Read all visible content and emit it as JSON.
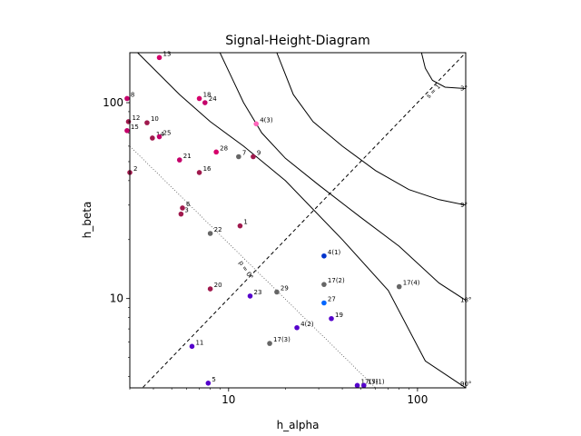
{
  "chart_data": {
    "type": "scatter",
    "title": "Signal-Height-Diagram",
    "xlabel": "h_alpha",
    "ylabel": "h_beta",
    "xscale": "log",
    "yscale": "log",
    "xlim": [
      3,
      180
    ],
    "ylim": [
      3.5,
      180
    ],
    "x_ticks": [
      {
        "v": 10,
        "label": "10"
      },
      {
        "v": 100,
        "label": "100"
      }
    ],
    "y_ticks": [
      {
        "v": 10,
        "label": "10"
      },
      {
        "v": 100,
        "label": "100"
      }
    ],
    "grid": false,
    "legend": "none",
    "diagonal_label": "s = 1",
    "phase_line_label": "p = 0°",
    "curves": [
      {
        "label": "90°",
        "points": [
          [
            3.3,
            180
          ],
          [
            5.5,
            110
          ],
          [
            8,
            80
          ],
          [
            12,
            60
          ],
          [
            20,
            40
          ],
          [
            40,
            20
          ],
          [
            70,
            11
          ],
          [
            110,
            4.8
          ],
          [
            180,
            3.5
          ]
        ]
      },
      {
        "label": "18°",
        "points": [
          [
            9,
            180
          ],
          [
            12,
            100
          ],
          [
            15,
            70
          ],
          [
            20,
            52
          ],
          [
            30,
            38
          ],
          [
            50,
            26
          ],
          [
            80,
            18.5
          ],
          [
            130,
            12
          ],
          [
            180,
            9.8
          ]
        ]
      },
      {
        "label": "9°",
        "points": [
          [
            18,
            180
          ],
          [
            22,
            110
          ],
          [
            28,
            80
          ],
          [
            40,
            60
          ],
          [
            60,
            45
          ],
          [
            90,
            36
          ],
          [
            130,
            32
          ],
          [
            180,
            30
          ]
        ]
      },
      {
        "label": "3°",
        "points": [
          [
            105,
            180
          ],
          [
            110,
            150
          ],
          [
            120,
            130
          ],
          [
            140,
            120
          ],
          [
            180,
            118
          ]
        ]
      }
    ],
    "points": [
      {
        "label": "13",
        "x": 4.3,
        "y": 170,
        "color": "#d6006b"
      },
      {
        "label": "8",
        "x": 2.9,
        "y": 105,
        "color": "#c4006a"
      },
      {
        "label": "18",
        "x": 7.0,
        "y": 105,
        "color": "#d6006b"
      },
      {
        "label": "24",
        "x": 7.5,
        "y": 100,
        "color": "#c4006a"
      },
      {
        "label": "12",
        "x": 2.95,
        "y": 80,
        "color": "#a0194d"
      },
      {
        "label": "10",
        "x": 3.7,
        "y": 79,
        "color": "#a0194d"
      },
      {
        "label": "15",
        "x": 2.9,
        "y": 72,
        "color": "#c4006a"
      },
      {
        "label": "14",
        "x": 3.95,
        "y": 66,
        "color": "#a0194d"
      },
      {
        "label": "25",
        "x": 4.3,
        "y": 67,
        "color": "#c4006a"
      },
      {
        "label": "4(3)",
        "x": 14,
        "y": 78,
        "color": "#ff66bb"
      },
      {
        "label": "28",
        "x": 8.6,
        "y": 56,
        "color": "#d6006b"
      },
      {
        "label": "7",
        "x": 11.3,
        "y": 53,
        "color": "#666666"
      },
      {
        "label": "9",
        "x": 13.5,
        "y": 53,
        "color": "#a0194d"
      },
      {
        "label": "21",
        "x": 5.5,
        "y": 51,
        "color": "#c4006a"
      },
      {
        "label": "2",
        "x": 3.0,
        "y": 44,
        "color": "#a0194d"
      },
      {
        "label": "16",
        "x": 7.0,
        "y": 44,
        "color": "#a0194d"
      },
      {
        "label": "6",
        "x": 5.7,
        "y": 29,
        "color": "#a0194d"
      },
      {
        "label": "3",
        "x": 5.6,
        "y": 27,
        "color": "#a0194d"
      },
      {
        "label": "1",
        "x": 11.5,
        "y": 23.5,
        "color": "#a0194d"
      },
      {
        "label": "22",
        "x": 8.0,
        "y": 21.5,
        "color": "#666666"
      },
      {
        "label": "4(1)",
        "x": 32,
        "y": 16.5,
        "color": "#0033cc"
      },
      {
        "label": "17(2)",
        "x": 32,
        "y": 11.8,
        "color": "#666666"
      },
      {
        "label": "17(4)",
        "x": 80,
        "y": 11.5,
        "color": "#666666"
      },
      {
        "label": "20",
        "x": 8.0,
        "y": 11.2,
        "color": "#a0194d"
      },
      {
        "label": "29",
        "x": 18,
        "y": 10.8,
        "color": "#666666"
      },
      {
        "label": "23",
        "x": 13,
        "y": 10.3,
        "color": "#5500cc"
      },
      {
        "label": "27",
        "x": 32,
        "y": 9.5,
        "color": "#0066ff"
      },
      {
        "label": "19",
        "x": 35,
        "y": 7.9,
        "color": "#5500cc"
      },
      {
        "label": "4(2)",
        "x": 23,
        "y": 7.1,
        "color": "#5500cc"
      },
      {
        "label": "17(3)",
        "x": 16.5,
        "y": 5.9,
        "color": "#666666"
      },
      {
        "label": "11",
        "x": 6.4,
        "y": 5.7,
        "color": "#5500cc"
      },
      {
        "label": "5",
        "x": 7.8,
        "y": 3.7,
        "color": "#5500cc"
      },
      {
        "label": "17(5)",
        "x": 48,
        "y": 3.6,
        "color": "#5500cc"
      },
      {
        "label": "17(1)",
        "x": 52,
        "y": 3.6,
        "color": "#5500cc"
      }
    ]
  }
}
